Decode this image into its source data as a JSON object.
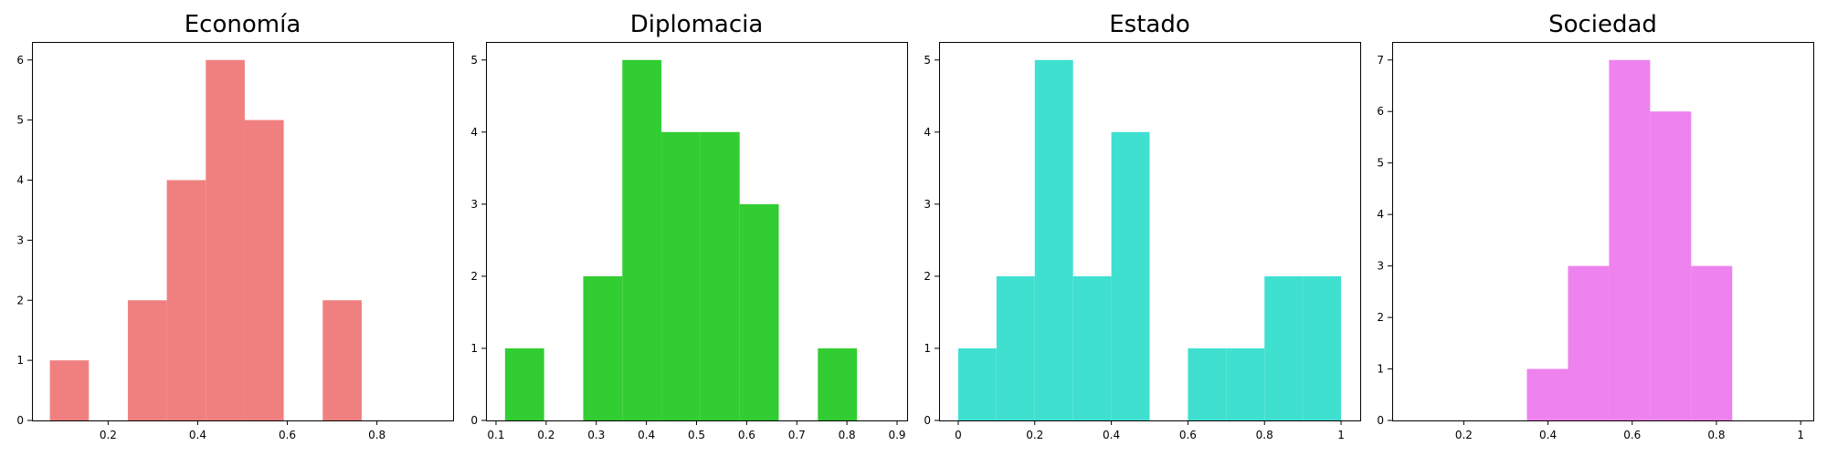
{
  "chart_data": [
    {
      "type": "bar",
      "title": "Economía",
      "color": "#f08080",
      "xlim": [
        0.03,
        0.97
      ],
      "ylim": [
        0,
        6.3
      ],
      "xticks": [
        0.2,
        0.4,
        0.6,
        0.8
      ],
      "yticks": [
        0,
        1,
        2,
        3,
        4,
        5,
        6
      ],
      "bins": [
        {
          "x0": 0.07,
          "x1": 0.157,
          "count": 1
        },
        {
          "x0": 0.157,
          "x1": 0.244,
          "count": 0
        },
        {
          "x0": 0.244,
          "x1": 0.331,
          "count": 2
        },
        {
          "x0": 0.331,
          "x1": 0.418,
          "count": 4
        },
        {
          "x0": 0.418,
          "x1": 0.505,
          "count": 6
        },
        {
          "x0": 0.505,
          "x1": 0.592,
          "count": 5
        },
        {
          "x0": 0.592,
          "x1": 0.679,
          "count": 0
        },
        {
          "x0": 0.679,
          "x1": 0.766,
          "count": 2
        }
      ]
    },
    {
      "type": "bar",
      "title": "Diplomacia",
      "color": "#32cd32",
      "xlim": [
        0.08,
        0.92
      ],
      "ylim": [
        0,
        5.25
      ],
      "xticks": [
        0.1,
        0.2,
        0.3,
        0.4,
        0.5,
        0.6,
        0.7,
        0.8,
        0.9
      ],
      "yticks": [
        0,
        1,
        2,
        3,
        4,
        5
      ],
      "bins": [
        {
          "x0": 0.118,
          "x1": 0.196,
          "count": 1
        },
        {
          "x0": 0.196,
          "x1": 0.274,
          "count": 0
        },
        {
          "x0": 0.274,
          "x1": 0.352,
          "count": 2
        },
        {
          "x0": 0.352,
          "x1": 0.43,
          "count": 5
        },
        {
          "x0": 0.43,
          "x1": 0.508,
          "count": 4
        },
        {
          "x0": 0.508,
          "x1": 0.586,
          "count": 4
        },
        {
          "x0": 0.586,
          "x1": 0.664,
          "count": 3
        },
        {
          "x0": 0.664,
          "x1": 0.742,
          "count": 0
        },
        {
          "x0": 0.742,
          "x1": 0.82,
          "count": 1
        }
      ]
    },
    {
      "type": "bar",
      "title": "Estado",
      "color": "#40e0d0",
      "xlim": [
        -0.05,
        1.05
      ],
      "ylim": [
        0,
        5.25
      ],
      "xticks": [
        0.0,
        0.2,
        0.4,
        0.6,
        0.8,
        1.0
      ],
      "yticks": [
        0,
        1,
        2,
        3,
        4,
        5
      ],
      "bins": [
        {
          "x0": 0.0,
          "x1": 0.1,
          "count": 1
        },
        {
          "x0": 0.1,
          "x1": 0.2,
          "count": 2
        },
        {
          "x0": 0.2,
          "x1": 0.3,
          "count": 5
        },
        {
          "x0": 0.3,
          "x1": 0.4,
          "count": 2
        },
        {
          "x0": 0.4,
          "x1": 0.5,
          "count": 4
        },
        {
          "x0": 0.5,
          "x1": 0.6,
          "count": 0
        },
        {
          "x0": 0.6,
          "x1": 0.7,
          "count": 1
        },
        {
          "x0": 0.7,
          "x1": 0.8,
          "count": 1
        },
        {
          "x0": 0.8,
          "x1": 0.9,
          "count": 2
        },
        {
          "x0": 0.9,
          "x1": 1.0,
          "count": 2
        }
      ]
    },
    {
      "type": "bar",
      "title": "Sociedad",
      "color": "#ee82ee",
      "xlim": [
        0.03,
        1.03
      ],
      "ylim": [
        0,
        7.35
      ],
      "xticks": [
        0.2,
        0.4,
        0.6,
        0.8,
        1.0
      ],
      "yticks": [
        0,
        1,
        2,
        3,
        4,
        5,
        6,
        7
      ],
      "bins": [
        {
          "x0": 0.35,
          "x1": 0.4475,
          "count": 1
        },
        {
          "x0": 0.4475,
          "x1": 0.545,
          "count": 3
        },
        {
          "x0": 0.545,
          "x1": 0.6425,
          "count": 7
        },
        {
          "x0": 0.6425,
          "x1": 0.74,
          "count": 6
        },
        {
          "x0": 0.74,
          "x1": 0.8375,
          "count": 3
        }
      ]
    }
  ]
}
